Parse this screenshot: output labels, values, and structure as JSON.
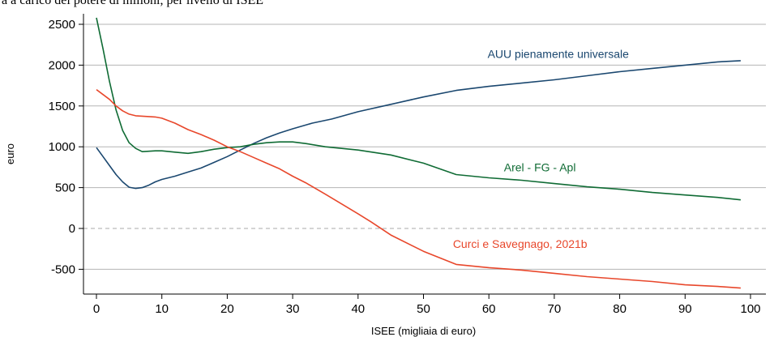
{
  "caption": "a a carico del potere di milioni, per livello di ISEE",
  "colors": {
    "series1": "#1a476f",
    "series2": "#0f6b34",
    "series3": "#e8472b",
    "grid": "#b5b5b5",
    "zero": "#aaaaaa"
  },
  "chart_data": {
    "type": "line",
    "title": "",
    "xlabel": "ISEE (migliaia di euro)",
    "ylabel": "euro",
    "xlim": [
      -2,
      101
    ],
    "ylim": [
      -800,
      2600
    ],
    "xticks": [
      0,
      10,
      20,
      30,
      40,
      50,
      60,
      70,
      80,
      90,
      100
    ],
    "yticks": [
      2500,
      2000,
      1500,
      1000,
      500,
      0,
      -500
    ],
    "grid": true,
    "series": [
      {
        "name": "AUU pienamente universale",
        "label_at": [
          59.8,
          2090
        ],
        "x": [
          0,
          1,
          2,
          3,
          4,
          5,
          6,
          7,
          8,
          9,
          10,
          12,
          14,
          16,
          18,
          20,
          22,
          24,
          26,
          28,
          30,
          33,
          36,
          40,
          45,
          50,
          55,
          60,
          65,
          70,
          75,
          80,
          85,
          90,
          95,
          98.5
        ],
        "y": [
          990,
          880,
          770,
          660,
          570,
          505,
          490,
          500,
          530,
          570,
          600,
          640,
          690,
          740,
          810,
          880,
          960,
          1040,
          1110,
          1170,
          1220,
          1290,
          1340,
          1430,
          1520,
          1610,
          1690,
          1740,
          1780,
          1820,
          1870,
          1920,
          1960,
          2000,
          2040,
          2055
        ]
      },
      {
        "name": "Arel - FG - Apl",
        "label_at": [
          62.3,
          700
        ],
        "x": [
          0,
          1,
          2,
          3,
          4,
          5,
          6,
          7,
          8,
          9,
          10,
          12,
          14,
          16,
          18,
          20,
          22,
          24,
          26,
          28,
          30,
          32,
          35,
          40,
          45,
          50,
          55,
          60,
          65,
          70,
          75,
          80,
          85,
          90,
          95,
          98.5
        ],
        "y": [
          2580,
          2200,
          1800,
          1450,
          1200,
          1050,
          980,
          940,
          945,
          950,
          950,
          935,
          920,
          940,
          970,
          990,
          1000,
          1030,
          1050,
          1060,
          1060,
          1040,
          1000,
          960,
          900,
          800,
          660,
          620,
          590,
          550,
          510,
          480,
          440,
          410,
          380,
          350
        ]
      },
      {
        "name": "Curci e Savegnago, 2021b",
        "label_at": [
          54.5,
          -240
        ],
        "x": [
          0,
          1,
          2,
          3,
          4,
          5,
          6,
          7,
          8,
          9,
          10,
          12,
          14,
          16,
          18,
          20,
          22,
          24,
          26,
          28,
          30,
          32,
          35,
          40,
          42,
          45,
          50,
          55,
          60,
          65,
          70,
          75,
          80,
          85,
          90,
          95,
          98.5
        ],
        "y": [
          1700,
          1640,
          1580,
          1500,
          1440,
          1400,
          1380,
          1375,
          1370,
          1365,
          1350,
          1290,
          1210,
          1150,
          1080,
          1000,
          940,
          870,
          800,
          730,
          640,
          560,
          420,
          180,
          80,
          -80,
          -280,
          -440,
          -480,
          -510,
          -550,
          -590,
          -620,
          -650,
          -690,
          -710,
          -730
        ]
      }
    ]
  }
}
